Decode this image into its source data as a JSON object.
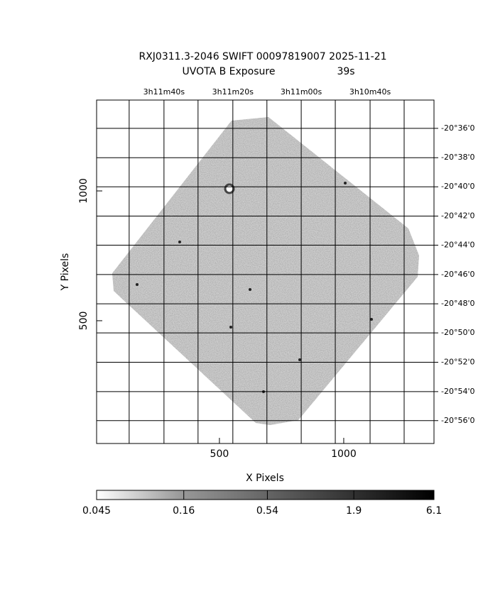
{
  "chart_data": {
    "type": "image",
    "title": "RXJ0311.3-2046 SWIFT 00097819007 2025-11-21",
    "subtitle": "UVOTA B Exposure",
    "exposure": "39s",
    "x_label": "X Pixels",
    "y_label": "Y Pixels",
    "xlim": [
      6,
      1363
    ],
    "ylim": [
      27,
      1350
    ],
    "xticks": [
      500,
      1000
    ],
    "yticks": [
      500,
      1000
    ],
    "ra_grid": [
      137,
      414,
      691,
      966,
      1243
    ],
    "ra_ticks": [
      {
        "value": 277,
        "label": "3h11m40s"
      },
      {
        "value": 554,
        "label": "3h11m20s"
      },
      {
        "value": 829,
        "label": "3h11m00s"
      },
      {
        "value": 1106,
        "label": "3h10m40s"
      }
    ],
    "dec_ticks": [
      {
        "value": 1241,
        "label": "-20°36'0"
      },
      {
        "value": 1128,
        "label": "-20°38'0"
      },
      {
        "value": 1016,
        "label": "-20°40'0"
      },
      {
        "value": 903,
        "label": "-20°42'0"
      },
      {
        "value": 791,
        "label": "-20°44'0"
      },
      {
        "value": 678,
        "label": "-20°46'0"
      },
      {
        "value": 565,
        "label": "-20°48'0"
      },
      {
        "value": 453,
        "label": "-20°50'0"
      },
      {
        "value": 340,
        "label": "-20°52'0"
      },
      {
        "value": 227,
        "label": "-20°54'0"
      },
      {
        "value": 115,
        "label": "-20°56'0"
      }
    ],
    "colorbar": {
      "lim": [
        0.045,
        6.1
      ],
      "log": true,
      "ticks": [
        0.045,
        0.16,
        0.54,
        1.9,
        6.1
      ]
    }
  }
}
